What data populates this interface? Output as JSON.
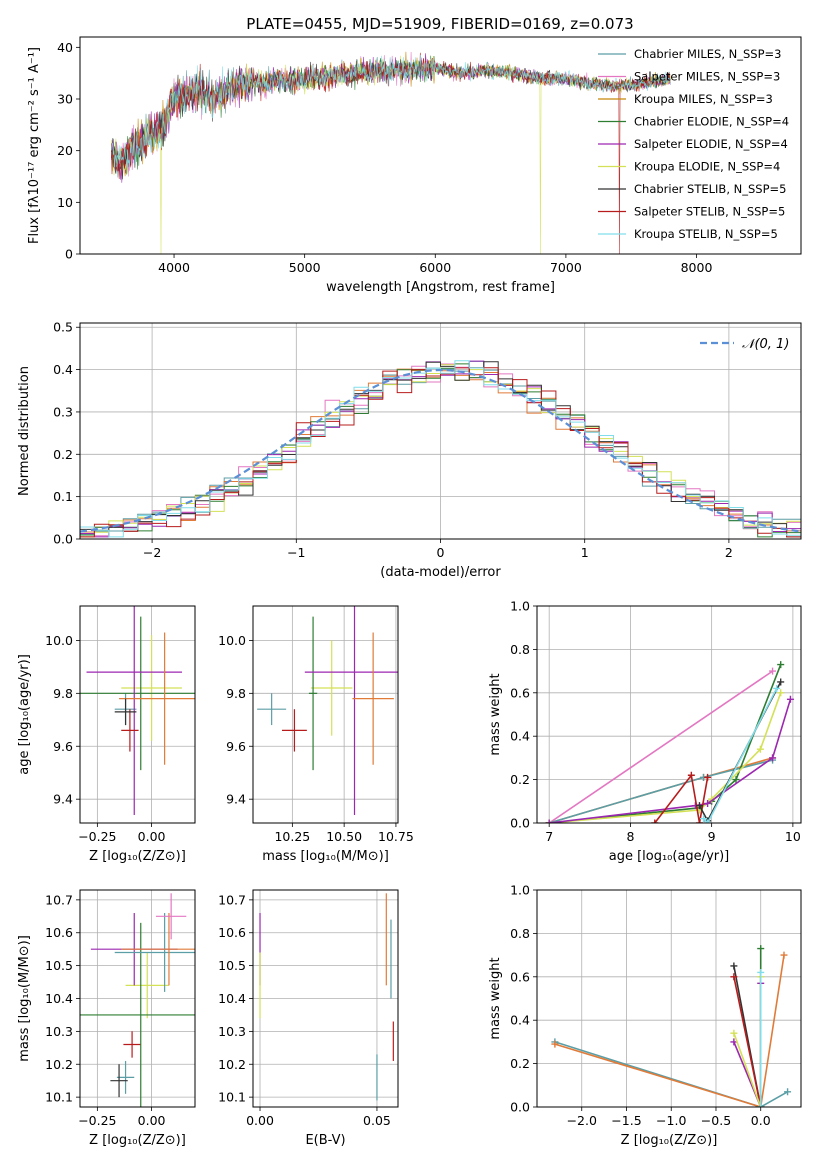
{
  "figure": {
    "title": "PLATE=0455, MJD=51909, FIBERID=0169, z=0.073"
  },
  "chart_data": [
    {
      "id": "spectrum",
      "type": "line",
      "xlabel": "wavelength [Angstrom, rest frame]",
      "ylabel": "Flux [fλ10⁻¹⁷ erg cm⁻² s⁻¹ A⁻¹]",
      "xlim": [
        3280,
        8800
      ],
      "ylim": [
        0,
        42
      ],
      "xticks": [
        4000,
        5000,
        6000,
        7000,
        8000
      ],
      "yticks": [
        0,
        10,
        20,
        30,
        40
      ],
      "grid": false,
      "legend_position": "top-right",
      "envelope": {
        "x": [
          3520,
          3600,
          3700,
          3800,
          3900,
          4000,
          4100,
          4200,
          4300,
          4400,
          4500,
          4600,
          4700,
          4800,
          4900,
          5000,
          5200,
          5400,
          5600,
          5800,
          6000,
          6200,
          6400,
          6600,
          6800,
          7000,
          7200,
          7400,
          7600,
          7800
        ],
        "y": [
          19,
          18,
          21,
          23,
          24,
          30,
          31,
          32,
          30,
          32,
          33,
          33.5,
          33,
          34,
          33.5,
          34,
          34.5,
          35,
          35.5,
          35.5,
          36,
          35,
          35.5,
          35,
          34,
          34,
          33,
          32.5,
          33,
          34
        ]
      },
      "series": [
        {
          "name": "Chabrier MILES, N_SSP=3",
          "color": "#5b9ea6"
        },
        {
          "name": "Salpeter MILES, N_SSP=3",
          "color": "#e377c2"
        },
        {
          "name": "Kroupa MILES, N_SSP=3",
          "color": "#c8860a"
        },
        {
          "name": "Chabrier ELODIE, N_SSP=4",
          "color": "#2e7d32"
        },
        {
          "name": "Salpeter ELODIE, N_SSP=4",
          "color": "#9c27b0"
        },
        {
          "name": "Kroupa ELODIE, N_SSP=4",
          "color": "#d4e157"
        },
        {
          "name": "Chabrier STELIB, N_SSP=5",
          "color": "#333333"
        },
        {
          "name": "Salpeter STELIB, N_SSP=5",
          "color": "#b71c1c"
        },
        {
          "name": "Kroupa STELIB, N_SSP=5",
          "color": "#80deea"
        }
      ]
    },
    {
      "id": "residuals",
      "type": "bar",
      "xlabel": "(data-model)/error",
      "ylabel": "Normed distribution",
      "xlim": [
        -2.5,
        2.5
      ],
      "ylim": [
        0,
        0.51
      ],
      "xticks": [
        -2,
        -1,
        0,
        1,
        2
      ],
      "yticks": [
        0.0,
        0.1,
        0.2,
        0.3,
        0.4,
        0.5
      ],
      "grid": true,
      "legend": "𝒩(0, 1)",
      "legend_position": "top-right",
      "bin_width": 0.1
    },
    {
      "id": "age-vs-Z",
      "type": "scatter",
      "xlabel": "Z [log₁₀(Z/Z⊙)]",
      "ylabel": "age  [log₁₀(age/yr)]",
      "xlim": [
        -0.33,
        0.2
      ],
      "ylim": [
        9.31,
        10.13
      ],
      "xticks": [
        -0.25,
        0.0
      ],
      "yticks": [
        9.4,
        9.6,
        9.8,
        10.0
      ],
      "grid": true,
      "points": [
        {
          "x": -0.12,
          "xerr": 0.05,
          "y": 9.74,
          "yerr": 0.06,
          "color": "#5b9ea6"
        },
        {
          "x": 0.0,
          "xerr": 0.14,
          "y": 9.82,
          "yerr": 0.2,
          "color": "#d4e157"
        },
        {
          "x": -0.05,
          "xerr": 0.28,
          "y": 9.8,
          "yerr": 0.29,
          "color": "#2e7d32"
        },
        {
          "x": -0.08,
          "xerr": 0.22,
          "y": 9.88,
          "yerr": 0.54,
          "color": "#9c27b0"
        },
        {
          "x": 0.06,
          "xerr": 0.21,
          "y": 9.78,
          "yerr": 0.25,
          "color": "#e07b39"
        },
        {
          "x": -0.1,
          "xerr": 0.04,
          "y": 9.66,
          "yerr": 0.08,
          "color": "#b71c1c"
        },
        {
          "x": -0.12,
          "xerr": 0.05,
          "y": 9.73,
          "yerr": 0.05,
          "color": "#333333"
        }
      ]
    },
    {
      "id": "age-vs-mass",
      "type": "scatter",
      "xlabel": "mass [log₁₀(M/M⊙)]",
      "ylabel": "",
      "xlim": [
        10.06,
        10.76
      ],
      "ylim": [
        9.31,
        10.13
      ],
      "xticks": [
        10.25,
        10.5,
        10.75
      ],
      "yticks": [
        9.4,
        9.6,
        9.8,
        10.0
      ],
      "grid": true,
      "points": [
        {
          "x": 10.15,
          "xerr": 0.07,
          "y": 9.74,
          "yerr": 0.06,
          "color": "#5b9ea6"
        },
        {
          "x": 10.44,
          "xerr": 0.1,
          "y": 9.82,
          "yerr": 0.18,
          "color": "#d4e157"
        },
        {
          "x": 10.35,
          "xerr": 0.02,
          "y": 9.8,
          "yerr": 0.29,
          "color": "#2e7d32"
        },
        {
          "x": 10.55,
          "xerr": 0.24,
          "y": 9.88,
          "yerr": 0.54,
          "color": "#9c27b0"
        },
        {
          "x": 10.64,
          "xerr": 0.1,
          "y": 9.78,
          "yerr": 0.25,
          "color": "#e07b39"
        },
        {
          "x": 10.26,
          "xerr": 0.06,
          "y": 9.66,
          "yerr": 0.08,
          "color": "#b71c1c"
        }
      ]
    },
    {
      "id": "mass-weight-vs-age",
      "type": "line",
      "xlabel": "age  [log₁₀(age/yr)]",
      "ylabel": "mass weight",
      "xlim": [
        6.85,
        10.1
      ],
      "ylim": [
        0,
        1
      ],
      "xticks": [
        7,
        8,
        9,
        10
      ],
      "yticks": [
        0.0,
        0.2,
        0.4,
        0.6,
        0.8,
        1.0
      ],
      "grid": true,
      "series": [
        {
          "color": "#e377c2",
          "x": [
            7.0,
            9.75
          ],
          "y": [
            0.0,
            0.7
          ]
        },
        {
          "color": "#e07b39",
          "x": [
            7.0,
            8.9,
            9.75
          ],
          "y": [
            0.0,
            0.21,
            0.3
          ]
        },
        {
          "color": "#5b9ea6",
          "x": [
            7.0,
            8.9,
            9.75
          ],
          "y": [
            0.0,
            0.21,
            0.29
          ]
        },
        {
          "color": "#2e7d32",
          "x": [
            7.0,
            8.85,
            9.0,
            9.3,
            9.85
          ],
          "y": [
            0.0,
            0.07,
            0.1,
            0.2,
            0.73
          ]
        },
        {
          "color": "#d4e157",
          "x": [
            7.0,
            8.85,
            9.0,
            9.6,
            9.85
          ],
          "y": [
            0.0,
            0.06,
            0.11,
            0.34,
            0.6
          ]
        },
        {
          "color": "#9c27b0",
          "x": [
            7.0,
            8.8,
            8.95,
            9.75,
            9.97
          ],
          "y": [
            0.0,
            0.08,
            0.09,
            0.3,
            0.57
          ]
        },
        {
          "color": "#b71c1c",
          "x": [
            8.3,
            8.75,
            8.85,
            8.95
          ],
          "y": [
            0.0,
            0.22,
            0.0,
            0.21
          ]
        },
        {
          "color": "#333333",
          "x": [
            8.85,
            8.95,
            9.85
          ],
          "y": [
            0.08,
            0.01,
            0.65
          ]
        },
        {
          "color": "#80deea",
          "x": [
            8.9,
            8.95,
            9.8
          ],
          "y": [
            0.02,
            0.0,
            0.62
          ]
        }
      ]
    },
    {
      "id": "mass-vs-Z",
      "type": "scatter",
      "xlabel": "Z [log₁₀(Z/Z⊙)]",
      "ylabel": "mass [log₁₀(M/M⊙)]",
      "xlim": [
        -0.33,
        0.2
      ],
      "ylim": [
        10.07,
        10.73
      ],
      "xticks": [
        -0.25,
        0.0
      ],
      "yticks": [
        10.1,
        10.2,
        10.3,
        10.4,
        10.5,
        10.6,
        10.7
      ],
      "grid": true,
      "points": [
        {
          "x": -0.12,
          "xerr": 0.04,
          "y": 10.16,
          "yerr": 0.05,
          "color": "#5b9ea6"
        },
        {
          "x": -0.15,
          "xerr": 0.04,
          "y": 10.15,
          "yerr": 0.05,
          "color": "#333333"
        },
        {
          "x": -0.09,
          "xerr": 0.04,
          "y": 10.26,
          "yerr": 0.04,
          "color": "#b71c1c"
        },
        {
          "x": -0.02,
          "xerr": 0.1,
          "y": 10.44,
          "yerr": 0.1,
          "color": "#d4e157"
        },
        {
          "x": -0.05,
          "xerr": 0.3,
          "y": 10.35,
          "yerr": 0.28,
          "color": "#2e7d32"
        },
        {
          "x": -0.08,
          "xerr": 0.2,
          "y": 10.55,
          "yerr": 0.11,
          "color": "#9c27b0"
        },
        {
          "x": 0.06,
          "xerr": 0.23,
          "y": 10.54,
          "yerr": 0.12,
          "color": "#5b9ea6"
        },
        {
          "x": 0.08,
          "xerr": 0.22,
          "y": 10.55,
          "yerr": 0.11,
          "color": "#e07b39"
        },
        {
          "x": 0.09,
          "xerr": 0.07,
          "y": 10.65,
          "yerr": 0.07,
          "color": "#e377c2"
        }
      ]
    },
    {
      "id": "mass-vs-ebv",
      "type": "scatter",
      "xlabel": "E(B-V)",
      "ylabel": "",
      "xlim": [
        -0.003,
        0.059
      ],
      "ylim": [
        10.07,
        10.73
      ],
      "xticks": [
        0.0,
        0.05
      ],
      "yticks": [
        10.1,
        10.2,
        10.3,
        10.4,
        10.5,
        10.6,
        10.7
      ],
      "grid": true,
      "points": [
        {
          "x": 0.0,
          "xerr": 0,
          "y": 10.55,
          "yerr": 0.11,
          "color": "#9c27b0"
        },
        {
          "x": 0.0,
          "xerr": 0,
          "y": 10.44,
          "yerr": 0.1,
          "color": "#d4e157"
        },
        {
          "x": 0.05,
          "xerr": 0,
          "y": 10.16,
          "yerr": 0.07,
          "color": "#5b9ea6"
        },
        {
          "x": 0.054,
          "xerr": 0,
          "y": 10.58,
          "yerr": 0.14,
          "color": "#e07b39"
        },
        {
          "x": 0.056,
          "xerr": 0,
          "y": 10.52,
          "yerr": 0.12,
          "color": "#5b9ea6"
        },
        {
          "x": 0.057,
          "xerr": 0,
          "y": 10.27,
          "yerr": 0.06,
          "color": "#b71c1c"
        }
      ]
    },
    {
      "id": "mass-weight-vs-Z",
      "type": "line",
      "xlabel": "Z [log₁₀(Z/Z⊙)]",
      "ylabel": "mass weight",
      "xlim": [
        -2.5,
        0.45
      ],
      "ylim": [
        0,
        1
      ],
      "xticks": [
        -2.0,
        -1.5,
        -1.0,
        -0.5,
        0.0
      ],
      "yticks": [
        0.0,
        0.2,
        0.4,
        0.6,
        0.8,
        1.0
      ],
      "grid": true,
      "series": [
        {
          "color": "#5b9ea6",
          "x": [
            -2.3,
            0.0,
            0.3
          ],
          "y": [
            0.3,
            0.0,
            0.07
          ]
        },
        {
          "color": "#e07b39",
          "x": [
            -2.3,
            0.0,
            0.26
          ],
          "y": [
            0.29,
            0.0,
            0.7
          ]
        },
        {
          "color": "#333333",
          "x": [
            -0.3,
            0.0
          ],
          "y": [
            0.65,
            0.0
          ]
        },
        {
          "color": "#b71c1c",
          "x": [
            -0.3,
            0.0
          ],
          "y": [
            0.6,
            0.0
          ]
        },
        {
          "color": "#9c27b0",
          "x": [
            -0.3,
            0.0,
            0.0
          ],
          "y": [
            0.3,
            0.0,
            0.57
          ]
        },
        {
          "color": "#d4e157",
          "x": [
            -0.3,
            0.0,
            0.0
          ],
          "y": [
            0.34,
            0.0,
            0.6
          ]
        },
        {
          "color": "#2e7d32",
          "x": [
            0.0,
            0.0
          ],
          "y": [
            0.0,
            0.73
          ]
        },
        {
          "color": "#80deea",
          "x": [
            0.0,
            0.0
          ],
          "y": [
            0.0,
            0.62
          ]
        }
      ]
    }
  ]
}
